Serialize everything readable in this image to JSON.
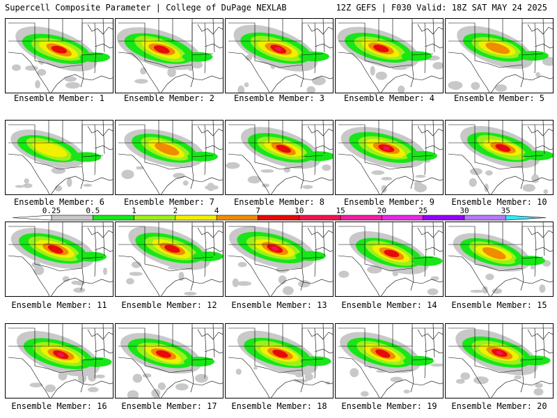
{
  "header": {
    "title": "Supercell Composite Parameter | College of DuPage NEXLAB",
    "run_info": "12Z GEFS | F030 Valid: 18Z SAT MAY 24 2025"
  },
  "caption_prefix": "Ensemble Member:",
  "members": [
    {
      "label": "Ensemble Member: 1",
      "peak": "7",
      "intensity": 0.9
    },
    {
      "label": "Ensemble Member: 2",
      "peak": "7",
      "intensity": 0.95
    },
    {
      "label": "Ensemble Member: 3",
      "peak": "10",
      "intensity": 1.0
    },
    {
      "label": "Ensemble Member: 4",
      "peak": "7",
      "intensity": 0.85
    },
    {
      "label": "Ensemble Member: 5",
      "peak": "4",
      "intensity": 0.7
    },
    {
      "label": "Ensemble Member: 6",
      "peak": "2",
      "intensity": 0.55
    },
    {
      "label": "Ensemble Member: 7",
      "peak": "4",
      "intensity": 0.75
    },
    {
      "label": "Ensemble Member: 8",
      "peak": "7",
      "intensity": 0.8
    },
    {
      "label": "Ensemble Member: 9",
      "peak": "10",
      "intensity": 0.95
    },
    {
      "label": "Ensemble Member: 10",
      "peak": "7",
      "intensity": 0.8
    },
    {
      "label": "Ensemble Member: 11",
      "peak": "7",
      "intensity": 0.9
    },
    {
      "label": "Ensemble Member: 12",
      "peak": "7",
      "intensity": 0.9
    },
    {
      "label": "Ensemble Member: 13",
      "peak": "10",
      "intensity": 1.0
    },
    {
      "label": "Ensemble Member: 14",
      "peak": "7",
      "intensity": 0.8
    },
    {
      "label": "Ensemble Member: 15",
      "peak": "4",
      "intensity": 0.65
    },
    {
      "label": "Ensemble Member: 16",
      "peak": "10",
      "intensity": 0.95
    },
    {
      "label": "Ensemble Member: 17",
      "peak": "7",
      "intensity": 0.8
    },
    {
      "label": "Ensemble Member: 18",
      "peak": "7",
      "intensity": 0.85
    },
    {
      "label": "Ensemble Member: 19",
      "peak": "7",
      "intensity": 0.8
    },
    {
      "label": "Ensemble Member: 20",
      "peak": "10",
      "intensity": 0.95
    }
  ],
  "colorbar": {
    "labels": [
      "0.25",
      "0.5",
      "1",
      "2",
      "4",
      "7",
      "10",
      "15",
      "20",
      "25",
      "30",
      "35"
    ],
    "colors": [
      "#ffffff",
      "#c8c8c8",
      "#18e618",
      "#9cf01a",
      "#f0f000",
      "#f08c00",
      "#e60a0a",
      "#f01450",
      "#f01ea0",
      "#e628e6",
      "#9600ff",
      "#b478ff",
      "#3ce6f0"
    ]
  },
  "legend_colors": {
    "0.25": "#c8c8c8",
    "0.5": "#18e618",
    "1": "#9cf01a",
    "2": "#f0f000",
    "4": "#f08c00",
    "7": "#e60a0a",
    "10": "#f01450"
  }
}
